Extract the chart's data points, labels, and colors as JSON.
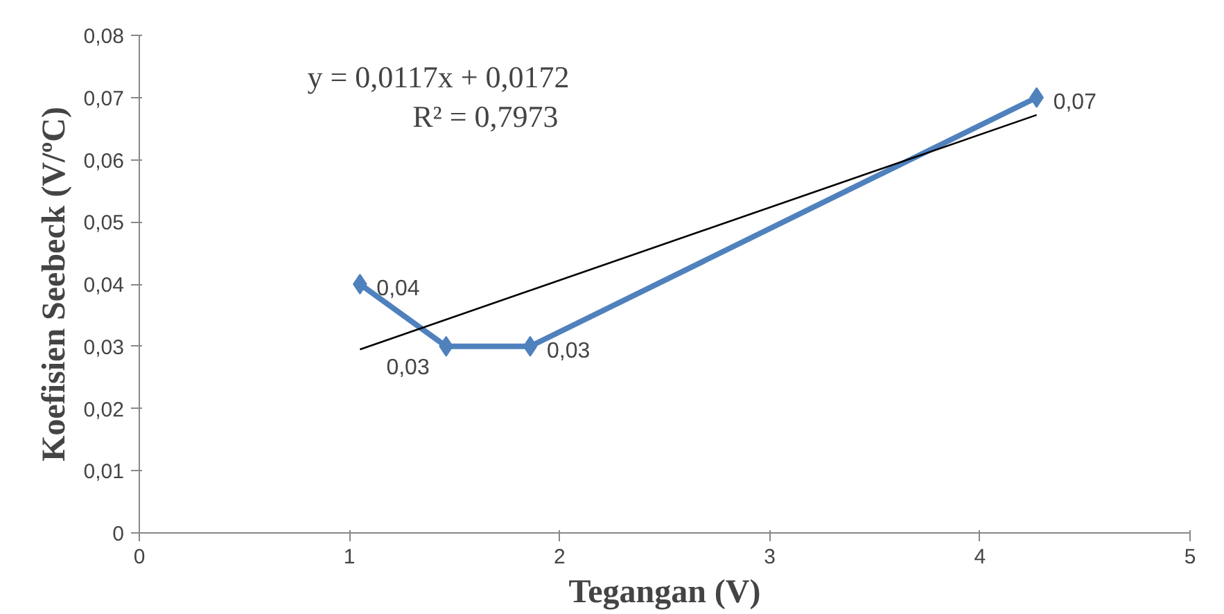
{
  "chart_data": {
    "type": "line",
    "xlabel": "Tegangan (V)",
    "ylabel": "Koefisien Seebeck (V/ºC)",
    "xlim": [
      0,
      5
    ],
    "xticks": [
      0,
      1,
      2,
      3,
      4,
      5
    ],
    "ylim": [
      0,
      0.08
    ],
    "yticks": [
      0,
      {
        "value": 0.01,
        "label": "0,01"
      },
      {
        "value": 0.02,
        "label": "0,02"
      },
      {
        "value": 0.03,
        "label": "0,03"
      },
      {
        "value": 0.04,
        "label": "0,04"
      },
      {
        "value": 0.05,
        "label": "0,05"
      },
      {
        "value": 0.06,
        "label": "0,06"
      },
      {
        "value": 0.07,
        "label": "0,07"
      },
      {
        "value": 0.08,
        "label": "0,08"
      }
    ],
    "grid": false,
    "marker": "diamond",
    "line_style": "solid",
    "annotations": [
      "y = 0,0117x + 0,0172",
      "R² = 0,7973"
    ],
    "series": [
      {
        "color": "#4f81bd",
        "x": [
          1.05,
          1.46,
          1.86,
          4.27
        ],
        "values": [
          0.04,
          0.03,
          0.03,
          0.07
        ],
        "value_labels": [
          "0,04",
          "0,03",
          "0,03",
          "0,07"
        ]
      },
      {
        "type": "line",
        "color": "#000000",
        "marker": "none",
        "x": [
          1.05,
          4.27
        ],
        "values": [
          0.0295,
          0.0672
        ]
      }
    ]
  }
}
